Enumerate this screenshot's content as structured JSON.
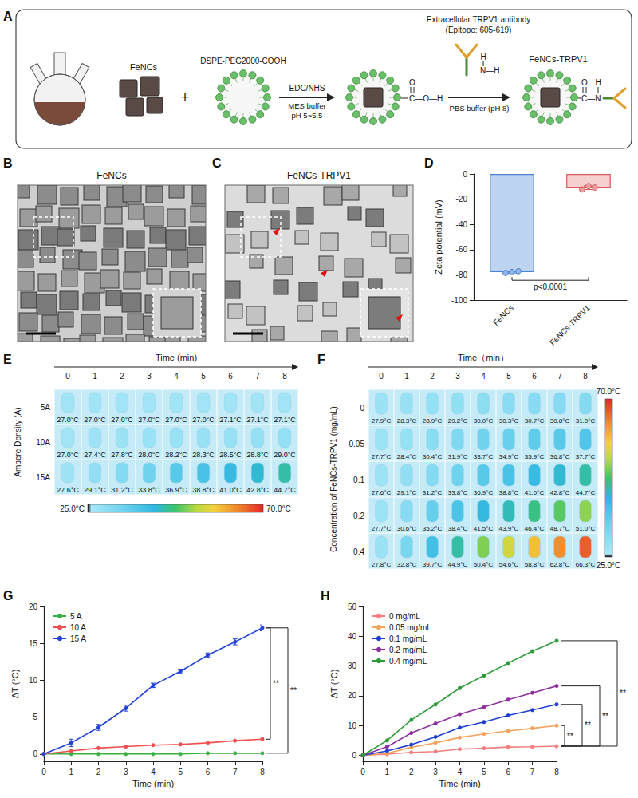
{
  "schematic": {
    "panel": "A",
    "nanocrystal": "FeNCs",
    "plus": "+",
    "lipid": "DSPE-PEG2000-COOH",
    "step1": {
      "reagent": "EDC/NHS",
      "conditions": [
        "MES buffer",
        "pH 5~5.5"
      ]
    },
    "carboxyl": {
      "top": "O",
      "main": "C—O—H"
    },
    "antibody": [
      "Extracellular TRPV1 antibody",
      "(Epitope: 605-619)"
    ],
    "amine": {
      "top": "H",
      "main": "N—H"
    },
    "step2": {
      "conditions": "PBS buffer (pH 8)"
    },
    "amide": {
      "top": [
        "O",
        "H"
      ],
      "main": "C—N"
    },
    "product": "FeNCs-TRPV1"
  },
  "images": [
    {
      "panel": "B",
      "title": "FeNCs"
    },
    {
      "panel": "C",
      "title": "FeNCs-TRPV1"
    }
  ],
  "thermal": [
    {
      "panel": "E",
      "title": "Time (min)",
      "columns": [
        0,
        1,
        2,
        3,
        4,
        5,
        6,
        7,
        8
      ],
      "row_title": "Ampere Density (A)",
      "rows": [
        {
          "label": "5A",
          "values": [
            27.0,
            27.0,
            27.0,
            27.0,
            27.0,
            27.0,
            27.1,
            27.1,
            27.1
          ],
          "value_labels": [
            "27.0°C",
            "27.0°C",
            "27.0°C",
            "27.0°C",
            "27.0°C",
            "27.0°C",
            "27.1°C",
            "27.1°C",
            "27.1°C"
          ]
        },
        {
          "label": "10A",
          "values": [
            27.0,
            27.4,
            27.8,
            28.0,
            28.2,
            28.3,
            28.5,
            28.8,
            29.0
          ],
          "value_labels": [
            "27.0°C",
            "27.4°C",
            "27.8°C",
            "28.0°C",
            "28.2°C",
            "28.3°C",
            "28.5°C",
            "28.8°C",
            "29.0°C"
          ]
        },
        {
          "label": "15A",
          "values": [
            27.6,
            29.1,
            31.2,
            33.8,
            36.9,
            38.8,
            41.0,
            42.8,
            44.7
          ],
          "value_labels": [
            "27.6°C",
            "29.1°C",
            "31.2°C",
            "33.8°C",
            "36.9°C",
            "38.8°C",
            "41.0°C",
            "42.8°C",
            "44.7°C"
          ]
        }
      ],
      "colorbar": {
        "range": [
          25.0,
          70.0
        ],
        "labels": [
          "25.0°C",
          "70.0°C"
        ],
        "orientation": "horizontal"
      }
    },
    {
      "panel": "F",
      "title": "Time（min）",
      "columns": [
        0,
        1,
        2,
        3,
        4,
        5,
        6,
        7,
        8
      ],
      "row_title": "Concentration of FeNCs-TRPV1 (mg/mL)",
      "rows": [
        {
          "label": "0",
          "values": [
            27.9,
            28.3,
            28.9,
            29.2,
            30.0,
            30.3,
            30.7,
            30.8,
            31.0
          ],
          "value_labels": [
            "27.9°C",
            "28.3°C",
            "28.9°C",
            "29.2°C",
            "30.0°C",
            "30.3°C",
            "30.7°C",
            "30.8°C",
            "31.0°C"
          ]
        },
        {
          "label": "0.05",
          "values": [
            27.7,
            28.4,
            30.4,
            31.9,
            33.7,
            34.9,
            35.9,
            36.8,
            37.7
          ],
          "value_labels": [
            "27.7°C",
            "28.4°C",
            "30.4°C",
            "31.9°C",
            "33.7°C",
            "34.9°C",
            "35.9°C",
            "36.8°C",
            "37.7°C"
          ]
        },
        {
          "label": "0.1",
          "values": [
            27.6,
            29.1,
            31.2,
            33.8,
            36.9,
            38.8,
            41.0,
            42.8,
            44.7
          ],
          "value_labels": [
            "27.6°C",
            "29.1°C",
            "31.2°C",
            "33.8°C",
            "36.9°C",
            "38.8°C",
            "41.0°C",
            "42.8°C",
            "44.7°C"
          ]
        },
        {
          "label": "0.2",
          "values": [
            27.7,
            30.6,
            35.2,
            38.4,
            41.5,
            43.9,
            46.4,
            48.7,
            51.0
          ],
          "value_labels": [
            "27.7°C",
            "30.6°C",
            "35.2°C",
            "38.4°C",
            "41.5°C",
            "43.9°C",
            "46.4°C",
            "48.7°C",
            "51.0°C"
          ]
        },
        {
          "label": "0.4",
          "values": [
            27.8,
            32.8,
            39.7,
            44.9,
            50.4,
            54.6,
            58.8,
            62.8,
            66.3
          ],
          "value_labels": [
            "27.8°C",
            "32.8°C",
            "39.7°C",
            "44.9°C",
            "50.4°C",
            "54.6°C",
            "58.8°C",
            "62.8°C",
            "66.3°C"
          ]
        }
      ],
      "colorbar": {
        "range": [
          25.0,
          70.0
        ],
        "labels": [
          "25.0°C",
          "70.0°C"
        ],
        "orientation": "vertical"
      }
    }
  ],
  "chart_data": [
    {
      "panel": "D",
      "type": "bar",
      "categories": [
        "FeNCs",
        "FeNCs-TRPV1"
      ],
      "values": [
        -77.8,
        -10.9
      ],
      "errors": [
        0.8,
        1.4
      ],
      "points": [
        [
          -78.5,
          -77.8,
          -77.1
        ],
        [
          -12.3,
          -9.6,
          -10.8
        ]
      ],
      "colors": [
        "#bcd4f2",
        "#f6cfcf"
      ],
      "ylabel": "Zeta potential (mV)",
      "ylim": [
        -100,
        0
      ],
      "yticks": [
        -100,
        -80,
        -60,
        -40,
        -20,
        0
      ],
      "grid": false,
      "annotations": [
        {
          "text": "p<0.0001",
          "between": [
            "FeNCs",
            "FeNCs-TRPV1"
          ]
        }
      ]
    },
    {
      "panel": "G",
      "type": "line",
      "x": [
        0,
        1,
        2,
        3,
        4,
        5,
        6,
        7,
        8
      ],
      "xlabel": "Time (min)",
      "ylabel": "ΔT (°C)",
      "xlim": [
        0,
        8
      ],
      "xticks": [
        0,
        1,
        2,
        3,
        4,
        5,
        6,
        7,
        8
      ],
      "ylim": [
        -1,
        20
      ],
      "yticks": [
        0,
        5,
        10,
        15,
        20
      ],
      "grid": false,
      "legend": "top-left",
      "marker": "circle",
      "line_style": "solid",
      "series": [
        {
          "name": "5 A",
          "color": "#3cb043",
          "values": [
            0,
            0,
            0,
            0,
            0,
            0,
            0.1,
            0.1,
            0.1
          ]
        },
        {
          "name": "10 A",
          "color": "#f04e4e",
          "values": [
            0,
            0.4,
            0.8,
            1.0,
            1.2,
            1.3,
            1.5,
            1.8,
            2.0
          ]
        },
        {
          "name": "15 A",
          "color": "#2343d8",
          "values": [
            0,
            1.5,
            3.6,
            6.2,
            9.3,
            11.2,
            13.4,
            15.2,
            17.1
          ],
          "errors": [
            0,
            0.5,
            0.4,
            0.4,
            0.3,
            0.3,
            0.3,
            0.4,
            0.4
          ]
        }
      ],
      "annotations": [
        {
          "text": "**",
          "between": [
            "15 A",
            "10 A"
          ]
        },
        {
          "text": "**",
          "between": [
            "15 A",
            "5 A"
          ]
        }
      ]
    },
    {
      "panel": "H",
      "type": "line",
      "x": [
        0,
        1,
        2,
        3,
        4,
        5,
        6,
        7,
        8
      ],
      "xlabel": "Time (min)",
      "ylabel": "ΔT (°C)",
      "xlim": [
        0,
        8
      ],
      "xticks": [
        0,
        1,
        2,
        3,
        4,
        5,
        6,
        7,
        8
      ],
      "ylim": [
        -2,
        50
      ],
      "yticks": [
        0,
        10,
        20,
        30,
        40,
        50
      ],
      "grid": false,
      "legend": "top-left",
      "marker": "circle",
      "line_style": "solid",
      "series": [
        {
          "name": "0 mg/mL",
          "color": "#f08080",
          "values": [
            0,
            0.4,
            1.0,
            1.3,
            2.1,
            2.4,
            2.8,
            2.9,
            3.1
          ]
        },
        {
          "name": "0.05 mg/mL",
          "color": "#f5a25d",
          "values": [
            0,
            0.7,
            2.7,
            4.2,
            6.0,
            7.2,
            8.2,
            9.1,
            10.0
          ]
        },
        {
          "name": "0.1 mg/mL",
          "color": "#1f3fd0",
          "values": [
            0,
            1.5,
            3.6,
            6.2,
            9.3,
            11.2,
            13.4,
            15.2,
            17.1
          ]
        },
        {
          "name": "0.2 mg/mL",
          "color": "#8e2fa0",
          "values": [
            0,
            2.9,
            7.5,
            10.7,
            13.8,
            16.2,
            18.7,
            21.0,
            23.3
          ]
        },
        {
          "name": "0.4 mg/mL",
          "color": "#2e9b3a",
          "values": [
            0,
            5.0,
            11.9,
            17.1,
            22.6,
            26.8,
            31.0,
            35.0,
            38.5
          ]
        }
      ],
      "annotations": [
        {
          "text": "**",
          "between": [
            "0.05 mg/mL",
            "0 mg/mL"
          ]
        },
        {
          "text": "**",
          "between": [
            "0.1 mg/mL",
            "0 mg/mL"
          ]
        },
        {
          "text": "**",
          "between": [
            "0.2 mg/mL",
            "0 mg/mL"
          ]
        },
        {
          "text": "**",
          "between": [
            "0.4 mg/mL",
            "0 mg/mL"
          ]
        }
      ]
    }
  ]
}
